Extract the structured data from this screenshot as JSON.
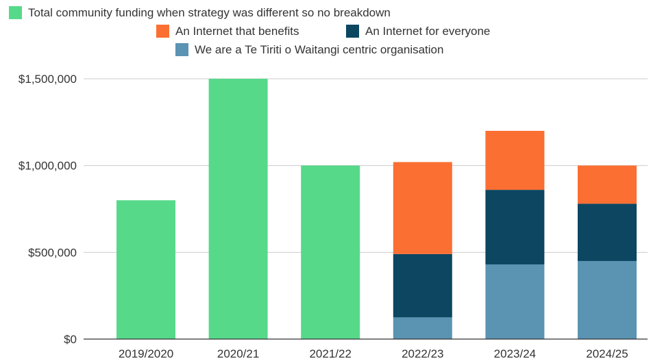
{
  "chart_data": {
    "type": "bar",
    "stacked": true,
    "categories": [
      "2019/2020",
      "2020/21",
      "2021/22",
      "2022/23",
      "2023/24",
      "2024/25"
    ],
    "series": [
      {
        "name": "Total community funding when strategy was different so no breakdown",
        "color": "#57d98a",
        "values": [
          800000,
          1500000,
          1000000,
          0,
          0,
          0
        ]
      },
      {
        "name": "We are a Te Tiriti o Waitangi centric organisation",
        "color": "#5b93b3",
        "values": [
          0,
          0,
          0,
          125000,
          430000,
          450000
        ]
      },
      {
        "name": "An Internet for everyone",
        "color": "#0c4661",
        "values": [
          0,
          0,
          0,
          365000,
          430000,
          330000
        ]
      },
      {
        "name": "An Internet that benefits",
        "color": "#fb6f32",
        "values": [
          0,
          0,
          0,
          530000,
          340000,
          220000
        ]
      }
    ],
    "ylim": [
      0,
      1500000
    ],
    "yticks": [
      0,
      500000,
      1000000,
      1500000
    ],
    "ytick_labels": [
      "$0",
      "$500,000",
      "$1,000,000",
      "$1,500,000"
    ],
    "grid": true,
    "legend_position": "top"
  }
}
